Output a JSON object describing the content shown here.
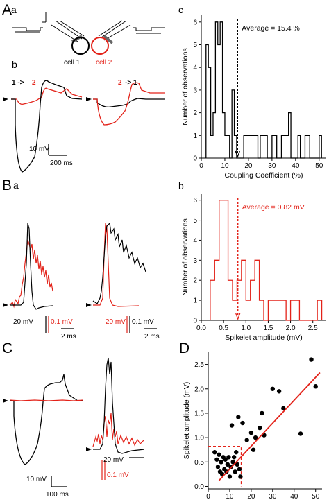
{
  "colors": {
    "black": "#000000",
    "red": "#e32219"
  },
  "panel_letters": {
    "A": "A",
    "Aa": "a",
    "Ab": "b",
    "Ac": "c",
    "B": "B",
    "Ba": "a",
    "Bb": "b",
    "C": "C",
    "D": "D"
  },
  "schematic": {
    "cell1": "cell 1",
    "cell2": "cell 2"
  },
  "traces_A": {
    "dir1_from": "1 ->",
    "dir1_to": "2",
    "dir2_from": "2",
    "dir2_to": "-> 1",
    "scale_mv": "10 mV",
    "scale_ms": "200 ms"
  },
  "traces_B": {
    "scale_left_black": "20 mV",
    "scale_left_red": "0.1 mV",
    "scale_left_ms": "2 ms",
    "scale_right_red": "20 mV",
    "scale_right_black": "0.1 mV",
    "scale_right_ms": "2 ms"
  },
  "traces_C": {
    "scale_mv": "10 mV",
    "scale_ms": "100 ms",
    "scale2_black": "20 mV",
    "scale2_red": "0.1 mV"
  },
  "chart_data": [
    {
      "id": "Ac",
      "type": "histogram",
      "xlabel": "Coupling Coefficient (%)",
      "ylabel": "Number of observations",
      "xlim": [
        0,
        53
      ],
      "ylim": [
        0,
        6.3
      ],
      "xticks": [
        0,
        10,
        20,
        30,
        40,
        50
      ],
      "yticks": [
        0,
        1,
        2,
        3,
        4,
        5,
        6
      ],
      "bin_width": 1,
      "bins": [
        {
          "x": 2,
          "count": 5
        },
        {
          "x": 3,
          "count": 4
        },
        {
          "x": 4,
          "count": 1
        },
        {
          "x": 5,
          "count": 2
        },
        {
          "x": 6,
          "count": 6
        },
        {
          "x": 7,
          "count": 5
        },
        {
          "x": 8,
          "count": 6
        },
        {
          "x": 9,
          "count": 2
        },
        {
          "x": 10,
          "count": 1
        },
        {
          "x": 11,
          "count": 1
        },
        {
          "x": 13,
          "count": 3
        },
        {
          "x": 14,
          "count": 1
        },
        {
          "x": 18,
          "count": 1
        },
        {
          "x": 19,
          "count": 1
        },
        {
          "x": 20,
          "count": 1
        },
        {
          "x": 21,
          "count": 1
        },
        {
          "x": 22,
          "count": 1
        },
        {
          "x": 23,
          "count": 1
        },
        {
          "x": 25,
          "count": 1
        },
        {
          "x": 26,
          "count": 1
        },
        {
          "x": 27,
          "count": 1
        },
        {
          "x": 30,
          "count": 1
        },
        {
          "x": 31,
          "count": 1
        },
        {
          "x": 34,
          "count": 1
        },
        {
          "x": 35,
          "count": 1
        },
        {
          "x": 36,
          "count": 1
        },
        {
          "x": 37,
          "count": 2
        },
        {
          "x": 41,
          "count": 1
        },
        {
          "x": 44,
          "count": 1
        },
        {
          "x": 45,
          "count": 1
        },
        {
          "x": 50,
          "count": 1
        }
      ],
      "average_value": 15.4,
      "average_label": "Average = 15.4 %",
      "color": "#000000"
    },
    {
      "id": "Bb",
      "type": "histogram",
      "xlabel": "Spikelet amplitude (mV)",
      "ylabel": "Number of observations",
      "xlim": [
        0,
        2.8
      ],
      "ylim": [
        0,
        6.3
      ],
      "xticks": [
        0.0,
        0.5,
        1.0,
        1.5,
        2.0,
        2.5
      ],
      "yticks": [
        0,
        1,
        2,
        3,
        4,
        5,
        6
      ],
      "bin_width": 0.1,
      "bins": [
        {
          "x": 0.2,
          "count": 2
        },
        {
          "x": 0.3,
          "count": 3
        },
        {
          "x": 0.4,
          "count": 6
        },
        {
          "x": 0.5,
          "count": 6
        },
        {
          "x": 0.6,
          "count": 2
        },
        {
          "x": 0.7,
          "count": 1
        },
        {
          "x": 0.8,
          "count": 2
        },
        {
          "x": 0.9,
          "count": 3
        },
        {
          "x": 1.0,
          "count": 1
        },
        {
          "x": 1.1,
          "count": 2
        },
        {
          "x": 1.2,
          "count": 3
        },
        {
          "x": 1.3,
          "count": 1
        },
        {
          "x": 1.5,
          "count": 1
        },
        {
          "x": 1.6,
          "count": 1
        },
        {
          "x": 1.7,
          "count": 1
        },
        {
          "x": 1.8,
          "count": 1
        },
        {
          "x": 2.0,
          "count": 1
        },
        {
          "x": 2.1,
          "count": 1
        },
        {
          "x": 2.6,
          "count": 1
        }
      ],
      "average_value": 0.82,
      "average_label": "Average = 0.82 mV",
      "color": "#e32219"
    },
    {
      "id": "D",
      "type": "scatter",
      "xlabel": "Coupling Coefficient (%)",
      "ylabel": "Spikelet amplitude (mV)",
      "xlim": [
        0,
        53
      ],
      "ylim": [
        -0.05,
        2.75
      ],
      "xticks": [
        0,
        10,
        20,
        30,
        40,
        50
      ],
      "yticks": [
        0.0,
        0.5,
        1.0,
        1.5,
        2.0,
        2.5
      ],
      "points": [
        {
          "x": 3,
          "y": 0.7
        },
        {
          "x": 4,
          "y": 0.55
        },
        {
          "x": 4.5,
          "y": 0.4
        },
        {
          "x": 5,
          "y": 0.65
        },
        {
          "x": 5.5,
          "y": 0.3
        },
        {
          "x": 6,
          "y": 0.5
        },
        {
          "x": 6.5,
          "y": 0.25
        },
        {
          "x": 7,
          "y": 0.6
        },
        {
          "x": 7.5,
          "y": 0.35
        },
        {
          "x": 8,
          "y": 0.55
        },
        {
          "x": 8.5,
          "y": 0.3
        },
        {
          "x": 9,
          "y": 0.45
        },
        {
          "x": 9.5,
          "y": 0.6
        },
        {
          "x": 10,
          "y": 0.2
        },
        {
          "x": 10.5,
          "y": 0.4
        },
        {
          "x": 11,
          "y": 1.25
        },
        {
          "x": 11.5,
          "y": 0.5
        },
        {
          "x": 12,
          "y": 0.6
        },
        {
          "x": 12.5,
          "y": 0.3
        },
        {
          "x": 13,
          "y": 0.7
        },
        {
          "x": 13.5,
          "y": 0.45
        },
        {
          "x": 14,
          "y": 1.42
        },
        {
          "x": 14.5,
          "y": 0.35
        },
        {
          "x": 15,
          "y": 0.2
        },
        {
          "x": 16,
          "y": 1.3
        },
        {
          "x": 18,
          "y": 0.95
        },
        {
          "x": 20,
          "y": 1.1
        },
        {
          "x": 21,
          "y": 0.75
        },
        {
          "x": 22,
          "y": 1.0
        },
        {
          "x": 24,
          "y": 1.2
        },
        {
          "x": 25,
          "y": 1.5
        },
        {
          "x": 26,
          "y": 1.05
        },
        {
          "x": 30,
          "y": 2.0
        },
        {
          "x": 33,
          "y": 1.95
        },
        {
          "x": 35,
          "y": 1.6
        },
        {
          "x": 43,
          "y": 1.08
        },
        {
          "x": 48,
          "y": 2.6
        },
        {
          "x": 50,
          "y": 2.05
        }
      ],
      "fit_line": [
        {
          "x": 5,
          "y": 0.12
        },
        {
          "x": 52,
          "y": 2.33
        }
      ],
      "threshold_box": {
        "x": [
          0,
          15.4
        ],
        "y": [
          0,
          0.82
        ]
      },
      "point_color": "#000000",
      "line_color": "#e32219"
    }
  ]
}
